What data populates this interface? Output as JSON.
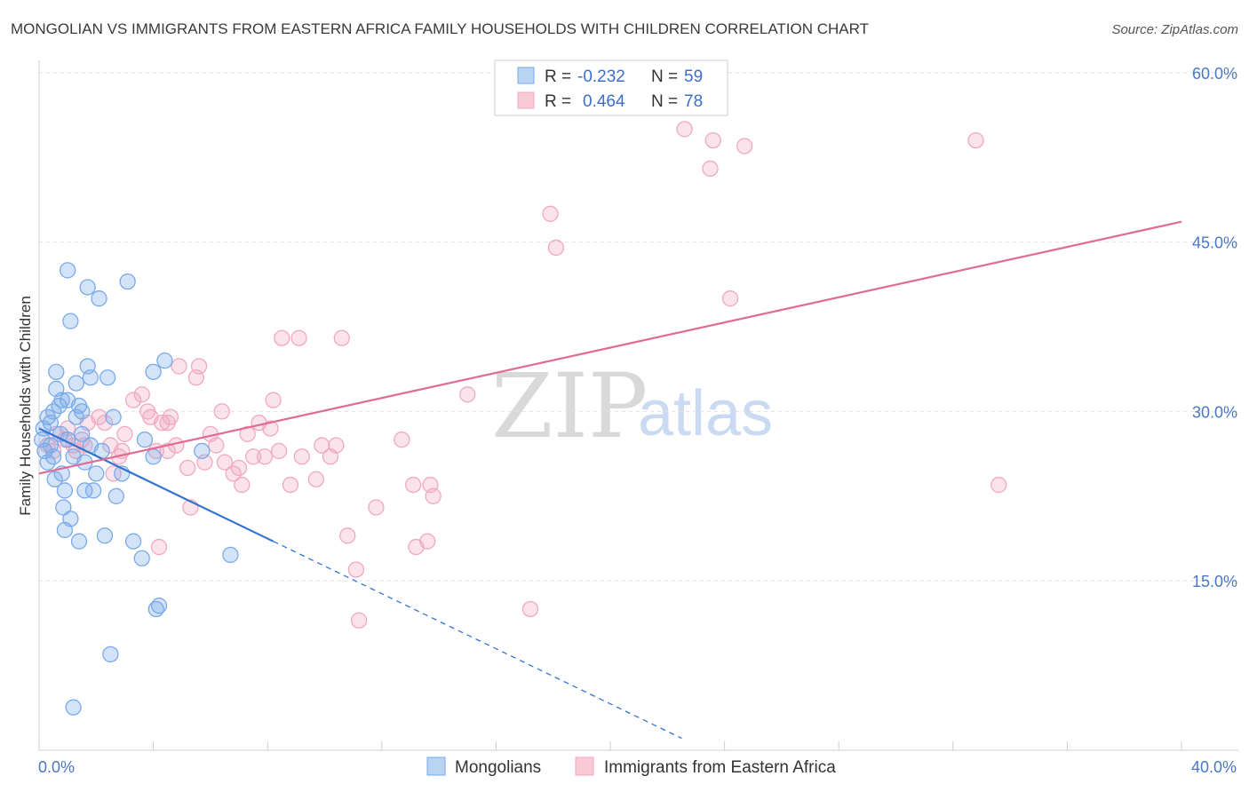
{
  "chart_data": {
    "type": "scatter",
    "title": "MONGOLIAN VS IMMIGRANTS FROM EASTERN AFRICA FAMILY HOUSEHOLDS WITH CHILDREN CORRELATION CHART",
    "source": "Source: ZipAtlas.com",
    "ylabel": "Family Households with Children",
    "xlabel": "",
    "xlim": [
      0,
      42
    ],
    "ylim": [
      0,
      62
    ],
    "x_tick_labels": {
      "left": "0.0%",
      "right": "40.0%"
    },
    "y_ticks": [
      {
        "value": 15,
        "label": "15.0%"
      },
      {
        "value": 30,
        "label": "30.0%"
      },
      {
        "value": 45,
        "label": "45.0%"
      },
      {
        "value": 60,
        "label": "60.0%"
      }
    ],
    "watermark": {
      "zip": "ZIP",
      "atlas": "atlas"
    },
    "legend": {
      "r_label": "R =",
      "n_label": "N =",
      "entries": [
        {
          "r": "-0.232",
          "n": "59"
        },
        {
          "r": "0.464",
          "n": "78"
        }
      ]
    },
    "series": [
      {
        "name": "Mongolians",
        "color": "#7aaae8",
        "line_color": "#3374d1",
        "trend": {
          "x0": 0,
          "y0": 28.5,
          "x1": 8.2,
          "y1": 18.5,
          "dash_to_x": 22.5
        },
        "points": [
          [
            0.1,
            27.5
          ],
          [
            0.2,
            26.5
          ],
          [
            0.15,
            28.5
          ],
          [
            0.3,
            29.5
          ],
          [
            0.3,
            25.5
          ],
          [
            0.4,
            27
          ],
          [
            0.5,
            30
          ],
          [
            0.5,
            26
          ],
          [
            0.55,
            24
          ],
          [
            0.6,
            33.5
          ],
          [
            0.6,
            32
          ],
          [
            0.7,
            30.5
          ],
          [
            0.75,
            28
          ],
          [
            0.8,
            31
          ],
          [
            0.8,
            24.5
          ],
          [
            0.85,
            21.5
          ],
          [
            0.9,
            19.5
          ],
          [
            0.9,
            23
          ],
          [
            1.0,
            31
          ],
          [
            1.0,
            27.5
          ],
          [
            1.0,
            42.5
          ],
          [
            1.1,
            38
          ],
          [
            1.1,
            20.5
          ],
          [
            1.2,
            26
          ],
          [
            1.3,
            29.5
          ],
          [
            1.3,
            32.5
          ],
          [
            1.4,
            30.5
          ],
          [
            1.4,
            18.5
          ],
          [
            1.5,
            28
          ],
          [
            1.5,
            30
          ],
          [
            1.6,
            25.5
          ],
          [
            1.6,
            23
          ],
          [
            1.7,
            34
          ],
          [
            1.7,
            41
          ],
          [
            1.8,
            27
          ],
          [
            1.8,
            33
          ],
          [
            1.9,
            23
          ],
          [
            2.0,
            24.5
          ],
          [
            2.1,
            40
          ],
          [
            2.2,
            26.5
          ],
          [
            2.3,
            19
          ],
          [
            2.4,
            33
          ],
          [
            2.5,
            8.5
          ],
          [
            2.6,
            29.5
          ],
          [
            2.7,
            22.5
          ],
          [
            2.9,
            24.5
          ],
          [
            3.1,
            41.5
          ],
          [
            3.3,
            18.5
          ],
          [
            3.6,
            17
          ],
          [
            3.7,
            27.5
          ],
          [
            4.0,
            33.5
          ],
          [
            4.4,
            34.5
          ],
          [
            4.0,
            26
          ],
          [
            4.1,
            12.5
          ],
          [
            4.2,
            12.8
          ],
          [
            5.7,
            26.5
          ],
          [
            6.7,
            17.3
          ],
          [
            1.2,
            3.8
          ],
          [
            0.4,
            29
          ]
        ]
      },
      {
        "name": "Immigrants from Eastern Africa",
        "color": "#f1a8c0",
        "line_color": "#e06b95",
        "trend": {
          "x0": 0,
          "y0": 24.5,
          "x1": 40,
          "y1": 46.8
        },
        "points": [
          [
            0.3,
            27
          ],
          [
            0.5,
            26.5
          ],
          [
            0.6,
            28
          ],
          [
            0.9,
            27.5
          ],
          [
            1.0,
            28.5
          ],
          [
            1.2,
            27
          ],
          [
            1.3,
            26.5
          ],
          [
            1.5,
            27.5
          ],
          [
            1.6,
            27
          ],
          [
            1.7,
            29
          ],
          [
            2.1,
            29.5
          ],
          [
            2.3,
            29
          ],
          [
            2.5,
            27
          ],
          [
            2.6,
            24.5
          ],
          [
            2.8,
            26
          ],
          [
            2.9,
            26.5
          ],
          [
            3.0,
            28
          ],
          [
            3.3,
            31
          ],
          [
            3.6,
            31.5
          ],
          [
            3.8,
            30
          ],
          [
            3.9,
            29.5
          ],
          [
            4.1,
            26.5
          ],
          [
            4.3,
            29
          ],
          [
            4.5,
            29
          ],
          [
            4.6,
            29.5
          ],
          [
            4.2,
            18
          ],
          [
            4.5,
            26.5
          ],
          [
            4.8,
            27
          ],
          [
            4.9,
            34
          ],
          [
            5.2,
            25
          ],
          [
            5.3,
            21.5
          ],
          [
            5.5,
            33
          ],
          [
            5.6,
            34
          ],
          [
            5.8,
            25.5
          ],
          [
            6.0,
            28
          ],
          [
            6.2,
            27
          ],
          [
            6.4,
            30
          ],
          [
            6.5,
            25.5
          ],
          [
            6.8,
            24.5
          ],
          [
            7.0,
            25
          ],
          [
            7.1,
            23.5
          ],
          [
            7.3,
            28
          ],
          [
            7.5,
            26
          ],
          [
            7.7,
            29
          ],
          [
            7.9,
            26
          ],
          [
            8.1,
            28.5
          ],
          [
            8.2,
            31
          ],
          [
            8.4,
            26.5
          ],
          [
            8.5,
            36.5
          ],
          [
            8.8,
            23.5
          ],
          [
            9.1,
            36.5
          ],
          [
            9.2,
            26
          ],
          [
            9.7,
            24
          ],
          [
            9.9,
            27
          ],
          [
            10.2,
            26
          ],
          [
            10.4,
            27
          ],
          [
            10.6,
            36.5
          ],
          [
            10.8,
            19
          ],
          [
            11.1,
            16
          ],
          [
            11.2,
            11.5
          ],
          [
            11.8,
            21.5
          ],
          [
            12.7,
            27.5
          ],
          [
            13.1,
            23.5
          ],
          [
            13.2,
            18
          ],
          [
            13.6,
            18.5
          ],
          [
            13.7,
            23.5
          ],
          [
            13.8,
            22.5
          ],
          [
            15.0,
            31.5
          ],
          [
            17.2,
            12.5
          ],
          [
            17.9,
            47.5
          ],
          [
            18.1,
            44.5
          ],
          [
            22.6,
            55
          ],
          [
            23.5,
            51.5
          ],
          [
            23.6,
            54
          ],
          [
            24.2,
            40
          ],
          [
            24.7,
            53.5
          ],
          [
            32.8,
            54
          ],
          [
            33.6,
            23.5
          ]
        ]
      }
    ]
  }
}
